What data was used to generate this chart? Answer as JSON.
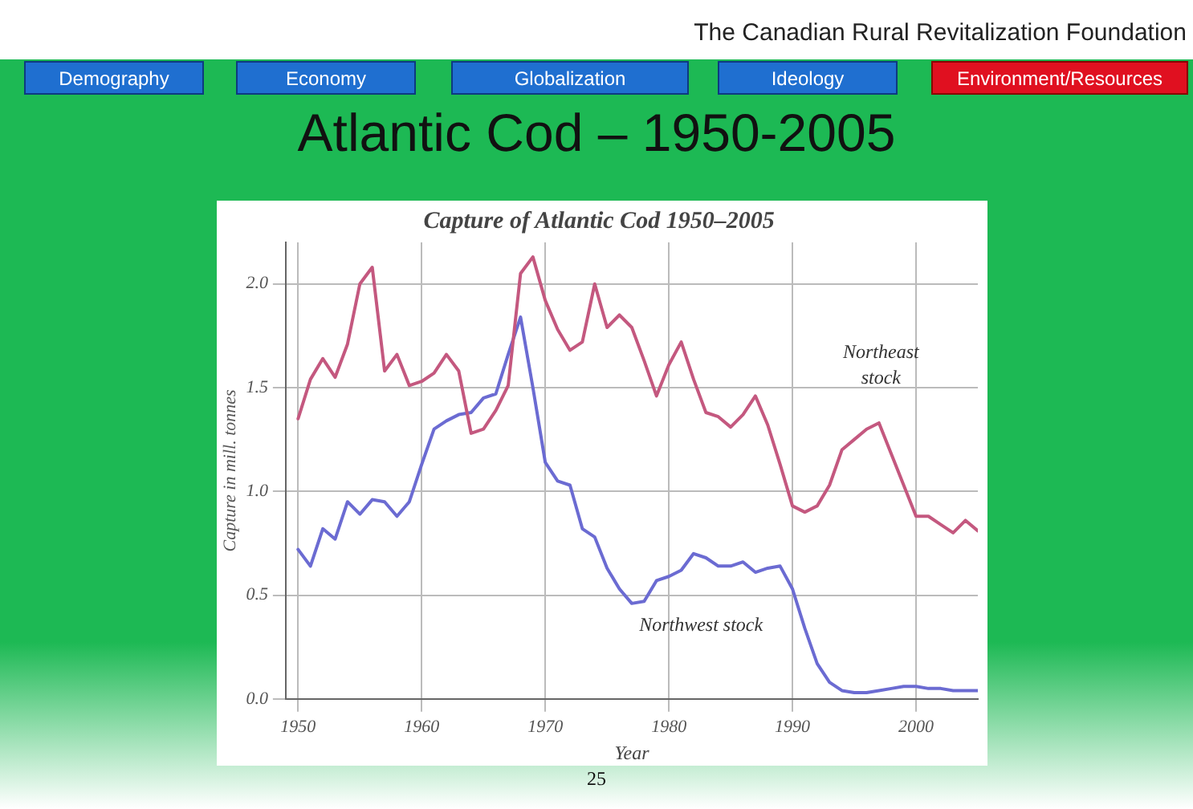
{
  "chart_data": {
    "type": "line",
    "title": "Atlantic Cod – 1950-2005",
    "subtitle": "Capture of Atlantic Cod 1950–2005",
    "xlabel": "Year",
    "ylabel": "Capture in mill. tonnes",
    "annotations": [
      "The Canadian Rural Revitalization Foundation",
      "Demography",
      "Economy",
      "Globalization",
      "Ideology",
      "Environment/Resources",
      "25"
    ],
    "x": [
      1950,
      1951,
      1952,
      1953,
      1954,
      1955,
      1956,
      1957,
      1958,
      1959,
      1960,
      1961,
      1962,
      1963,
      1964,
      1965,
      1966,
      1967,
      1968,
      1969,
      1970,
      1971,
      1972,
      1973,
      1974,
      1975,
      1976,
      1977,
      1978,
      1979,
      1980,
      1981,
      1982,
      1983,
      1984,
      1985,
      1986,
      1987,
      1988,
      1989,
      1990,
      1991,
      1992,
      1993,
      1994,
      1995,
      1996,
      1997,
      1998,
      1999,
      2000,
      2001,
      2002,
      2003,
      2004,
      2005
    ],
    "series": [
      {
        "name": "Northeast stock",
        "color": "#c4587f",
        "values": [
          1.35,
          1.54,
          1.64,
          1.55,
          1.71,
          2.0,
          2.08,
          1.58,
          1.66,
          1.51,
          1.53,
          1.57,
          1.66,
          1.58,
          1.28,
          1.3,
          1.39,
          1.51,
          2.05,
          2.13,
          1.92,
          1.78,
          1.68,
          1.72,
          2.0,
          1.79,
          1.85,
          1.79,
          1.63,
          1.46,
          1.61,
          1.72,
          1.54,
          1.38,
          1.36,
          1.31,
          1.37,
          1.46,
          1.32,
          1.13,
          0.93,
          0.9,
          0.93,
          1.03,
          1.2,
          1.25,
          1.3,
          1.33,
          1.18,
          1.03,
          0.88,
          0.88,
          0.84,
          0.8,
          0.86,
          0.81
        ]
      },
      {
        "name": "Northwest stock",
        "color": "#6b6bd2",
        "values": [
          0.72,
          0.64,
          0.82,
          0.77,
          0.95,
          0.89,
          0.96,
          0.95,
          0.88,
          0.95,
          1.13,
          1.3,
          1.34,
          1.37,
          1.38,
          1.45,
          1.47,
          1.66,
          1.84,
          1.5,
          1.14,
          1.05,
          1.03,
          0.82,
          0.78,
          0.63,
          0.53,
          0.46,
          0.47,
          0.57,
          0.59,
          0.62,
          0.7,
          0.68,
          0.64,
          0.64,
          0.66,
          0.61,
          0.63,
          0.64,
          0.53,
          0.34,
          0.17,
          0.08,
          0.04,
          0.03,
          0.03,
          0.04,
          0.05,
          0.06,
          0.06,
          0.05,
          0.05,
          0.04,
          0.04,
          0.04
        ]
      }
    ],
    "xlim": [
      1949,
      2005
    ],
    "xticks": [
      1950,
      1960,
      1970,
      1980,
      1990,
      2000
    ],
    "ylim": [
      0,
      2.2
    ],
    "yticks": [
      {
        "value": 0,
        "label": "0.0"
      },
      {
        "value": 0.5,
        "label": "0.5"
      },
      {
        "value": 1,
        "label": "1.0"
      },
      {
        "value": 1.5,
        "label": "1.5"
      },
      {
        "value": 2,
        "label": "2.0"
      }
    ],
    "grid": true,
    "legend": false,
    "marker": "none",
    "line_style": "solid"
  }
}
